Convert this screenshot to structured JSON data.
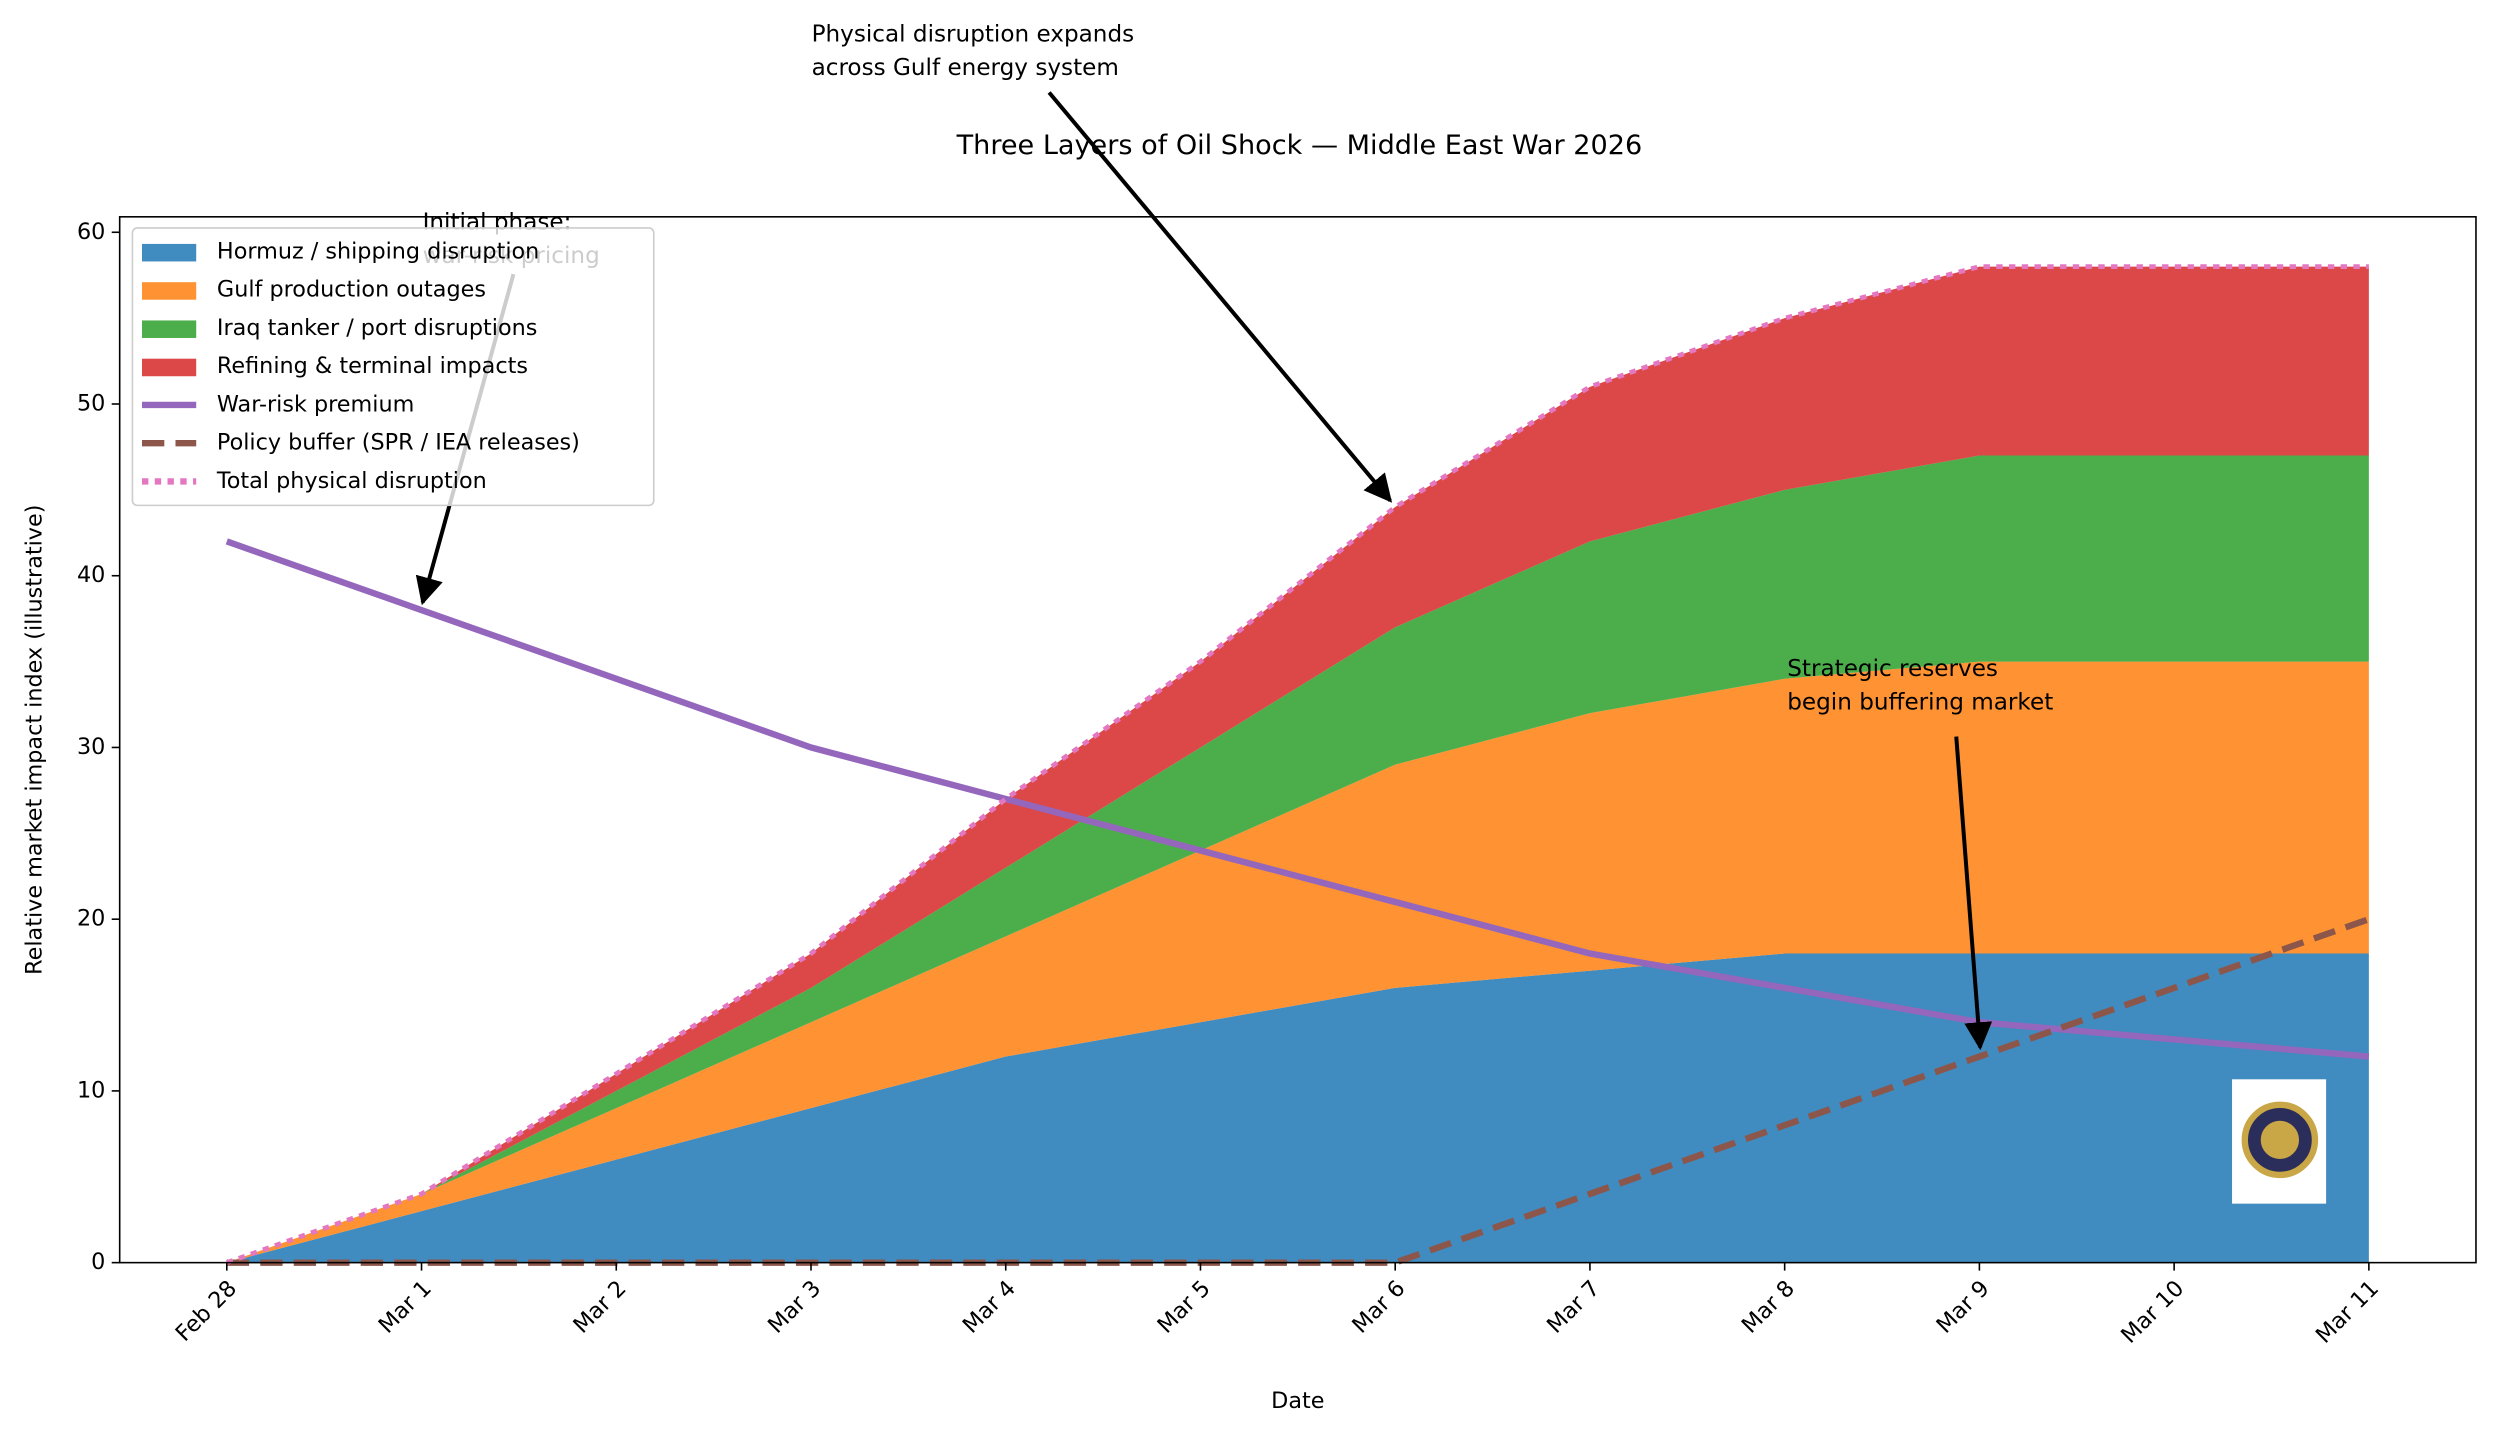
{
  "chart_data": {
    "type": "stacked-area-line",
    "title": "Three Layers of Oil Shock — Middle East War 2026",
    "x_label": "Date",
    "y_label": "Relative market impact index (illustrative)",
    "categories": [
      "Feb 28",
      "Mar 1",
      "Mar 2",
      "Mar 3",
      "Mar 4",
      "Mar 5",
      "Mar 6",
      "Mar 7",
      "Mar 8",
      "Mar 9",
      "Mar 10",
      "Mar 11"
    ],
    "series": [
      {
        "name": "Hormuz / shipping disruption",
        "kind": "area",
        "color": "#1f77b4",
        "values": [
          0,
          3,
          6,
          9,
          12,
          14,
          16,
          17,
          18,
          18,
          18,
          18
        ]
      },
      {
        "name": "Gulf production outages",
        "kind": "area",
        "color": "#ff7f0e",
        "values": [
          0,
          1,
          3,
          5,
          7,
          10,
          13,
          15,
          16,
          17,
          17,
          17
        ]
      },
      {
        "name": "Iraq tanker / port disruptions",
        "kind": "area",
        "color": "#2ca02c",
        "values": [
          0,
          0,
          1,
          2,
          4,
          6,
          8,
          10,
          11,
          12,
          12,
          12
        ]
      },
      {
        "name": "Refining & terminal impacts",
        "kind": "area",
        "color": "#d62728",
        "values": [
          0,
          0,
          1,
          2,
          4,
          5,
          7,
          9,
          10,
          11,
          11,
          11
        ]
      },
      {
        "name": "War-risk premium",
        "kind": "line",
        "dash": "solid",
        "color": "#9467bd",
        "values": [
          42,
          38,
          34,
          30,
          27,
          24,
          21,
          18,
          16,
          14,
          13,
          12
        ]
      },
      {
        "name": "Policy buffer (SPR / IEA releases)",
        "kind": "line",
        "dash": "dashed",
        "color": "#8c564b",
        "values": [
          0,
          0,
          0,
          0,
          0,
          0,
          0,
          4,
          8,
          12,
          16,
          20
        ]
      },
      {
        "name": "Total physical disruption",
        "kind": "line",
        "dash": "dotted",
        "color": "#e377c2",
        "values": [
          0,
          4,
          11,
          18,
          27,
          35,
          44,
          51,
          55,
          58,
          58,
          58
        ]
      }
    ],
    "ylim": [
      0,
      60.9
    ],
    "yticks": [
      0,
      10,
      20,
      30,
      40,
      50,
      60
    ],
    "grid": false,
    "legend": "upper left",
    "annotations": [
      {
        "lines": [
          "Initial phase:",
          "war-risk pricing"
        ]
      },
      {
        "lines": [
          "Physical disruption expands",
          "across Gulf energy system"
        ]
      },
      {
        "lines": [
          "Strategic reserves",
          "begin buffering market"
        ]
      }
    ]
  }
}
